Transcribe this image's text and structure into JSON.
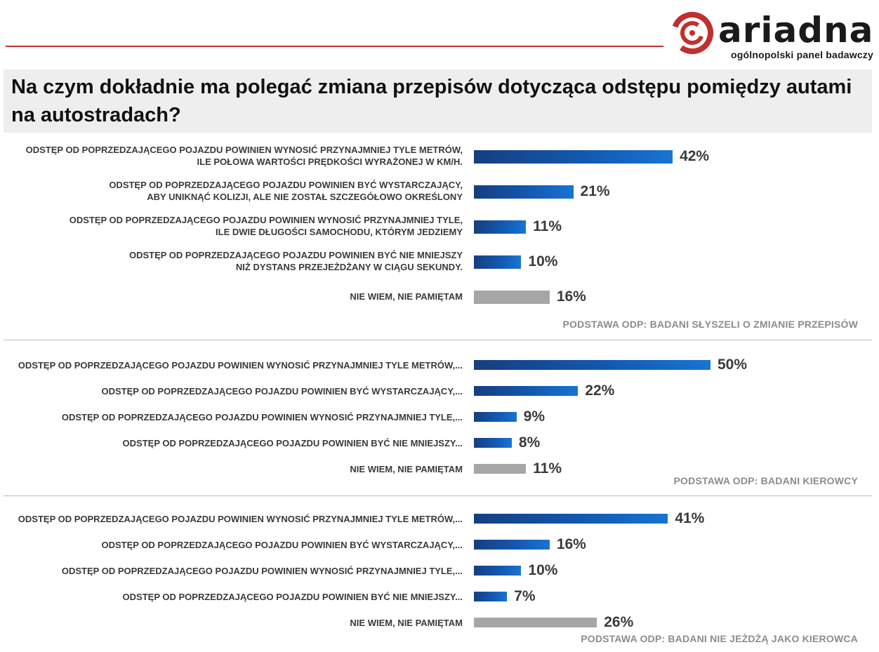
{
  "logo": {
    "wordmark": "ariadna",
    "tagline": "ogólnopolski panel badawczy",
    "accent_color": "#c0302f"
  },
  "title": "Na czym dokładnie ma polegać zmiana przepisów dotycząca odstępu pomiędzy autami na autostradach?",
  "colors": {
    "bar_blue": "#1358b0",
    "bar_gray": "#a6a6a6",
    "text": "#3a3a3a",
    "note": "#8c8c8c"
  },
  "chart_data": [
    {
      "type": "bar",
      "orientation": "horizontal",
      "categories": [
        [
          "ODSTĘP OD POPRZEDZAJĄCEGO POJAZDU POWINIEN WYNOSIĆ PRZYNAJMNIEJ TYLE METRÓW,",
          "ILE POŁOWA WARTOŚCI PRĘDKOŚCI WYRAŻONEJ W KM/H."
        ],
        [
          "ODSTĘP OD POPRZEDZAJĄCEGO POJAZDU POWINIEN BYĆ WYSTARCZAJĄCY,",
          "ABY UNIKNĄĆ KOLIZJI, ALE NIE  ZOSTAŁ SZCZEGÓŁOWO OKREŚLONY"
        ],
        [
          "ODSTĘP OD POPRZEDZAJĄCEGO POJAZDU POWINIEN WYNOSIĆ PRZYNAJMNIEJ TYLE,",
          "ILE DWIE DŁUGOŚCI SAMOCHODU, KTÓRYM JEDZIEMY"
        ],
        [
          "ODSTĘP OD POPRZEDZAJĄCEGO POJAZDU POWINIEN BYĆ NIE MNIEJSZY",
          "NIŻ DYSTANS PRZEJEŻDŻANY W CIĄGU SEKUNDY."
        ],
        [
          "NIE WIEM, NIE PAMIĘTAM"
        ]
      ],
      "values": [
        42,
        21,
        11,
        10,
        16
      ],
      "value_labels": [
        "42%",
        "21%",
        "11%",
        "10%",
        "16%"
      ],
      "bar_colors": [
        "blue",
        "blue",
        "blue",
        "blue",
        "gray"
      ],
      "note": "PODSTAWA ODP: BADANI SŁYSZELI O ZMIANIE PRZEPISÓW"
    },
    {
      "type": "bar",
      "orientation": "horizontal",
      "categories": [
        [
          "ODSTĘP OD POPRZEDZAJĄCEGO POJAZDU POWINIEN WYNOSIĆ PRZYNAJMNIEJ TYLE METRÓW,..."
        ],
        [
          "ODSTĘP OD POPRZEDZAJĄCEGO POJAZDU POWINIEN BYĆ WYSTARCZAJĄCY,..."
        ],
        [
          "ODSTĘP OD POPRZEDZAJĄCEGO POJAZDU POWINIEN WYNOSIĆ PRZYNAJMNIEJ TYLE,..."
        ],
        [
          "ODSTĘP OD POPRZEDZAJĄCEGO POJAZDU POWINIEN BYĆ NIE MNIEJSZY..."
        ],
        [
          "NIE WIEM, NIE PAMIĘTAM"
        ]
      ],
      "values": [
        50,
        22,
        9,
        8,
        11
      ],
      "value_labels": [
        "50%",
        "22%",
        "9%",
        "8%",
        "11%"
      ],
      "bar_colors": [
        "blue",
        "blue",
        "blue",
        "blue",
        "gray"
      ],
      "note": "PODSTAWA ODP: BADANI KIEROWCY"
    },
    {
      "type": "bar",
      "orientation": "horizontal",
      "categories": [
        [
          "ODSTĘP OD POPRZEDZAJĄCEGO POJAZDU POWINIEN WYNOSIĆ PRZYNAJMNIEJ TYLE METRÓW,..."
        ],
        [
          "ODSTĘP OD POPRZEDZAJĄCEGO POJAZDU POWINIEN BYĆ WYSTARCZAJĄCY,..."
        ],
        [
          "ODSTĘP OD POPRZEDZAJĄCEGO POJAZDU POWINIEN WYNOSIĆ PRZYNAJMNIEJ TYLE,..."
        ],
        [
          "ODSTĘP OD POPRZEDZAJĄCEGO POJAZDU POWINIEN BYĆ NIE MNIEJSZY..."
        ],
        [
          "NIE WIEM, NIE PAMIĘTAM"
        ]
      ],
      "values": [
        41,
        16,
        10,
        7,
        26
      ],
      "value_labels": [
        "41%",
        "16%",
        "10%",
        "7%",
        "26%"
      ],
      "bar_colors": [
        "blue",
        "blue",
        "blue",
        "blue",
        "gray"
      ],
      "note": "PODSTAWA ODP: BADANI NIE JEŻDŻĄ JAKO KIEROWCA"
    }
  ]
}
